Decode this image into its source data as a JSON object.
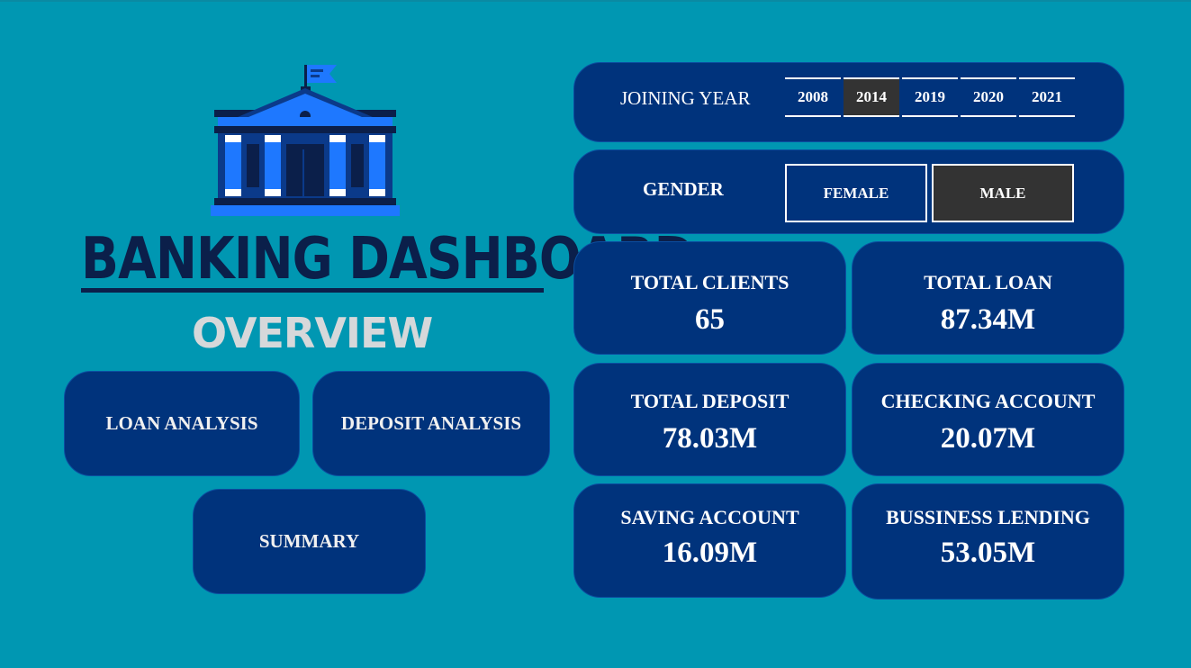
{
  "header": {
    "title": "BANKING DASHBOARD",
    "subtitle": "OVERVIEW"
  },
  "nav": {
    "loan_analysis": "LOAN ANALYSIS",
    "deposit_analysis": "DEPOSIT ANALYSIS",
    "summary": "SUMMARY"
  },
  "filters": {
    "joining_year": {
      "label": "JOINING YEAR",
      "options": [
        "2008",
        "2014",
        "2019",
        "2020",
        "2021"
      ],
      "selected": "2014"
    },
    "gender": {
      "label": "GENDER",
      "options": [
        "FEMALE",
        "MALE"
      ],
      "selected": "MALE"
    }
  },
  "kpis": [
    {
      "label": "TOTAL CLIENTS",
      "value": "65"
    },
    {
      "label": "TOTAL LOAN",
      "value": "87.34M"
    },
    {
      "label": "TOTAL DEPOSIT",
      "value": "78.03M"
    },
    {
      "label": "CHECKING ACCOUNT",
      "value": "20.07M"
    },
    {
      "label": "SAVING ACCOUNT",
      "value": "16.09M"
    },
    {
      "label": "BUSSINESS LENDING",
      "value": "53.05M"
    }
  ],
  "colors": {
    "background": "#0097b2",
    "panel": "#00337c",
    "selected": "#333333",
    "title": "#0b1f4a",
    "subtitle": "#d6d8da"
  },
  "icons": {
    "logo": "bank-building-icon"
  }
}
